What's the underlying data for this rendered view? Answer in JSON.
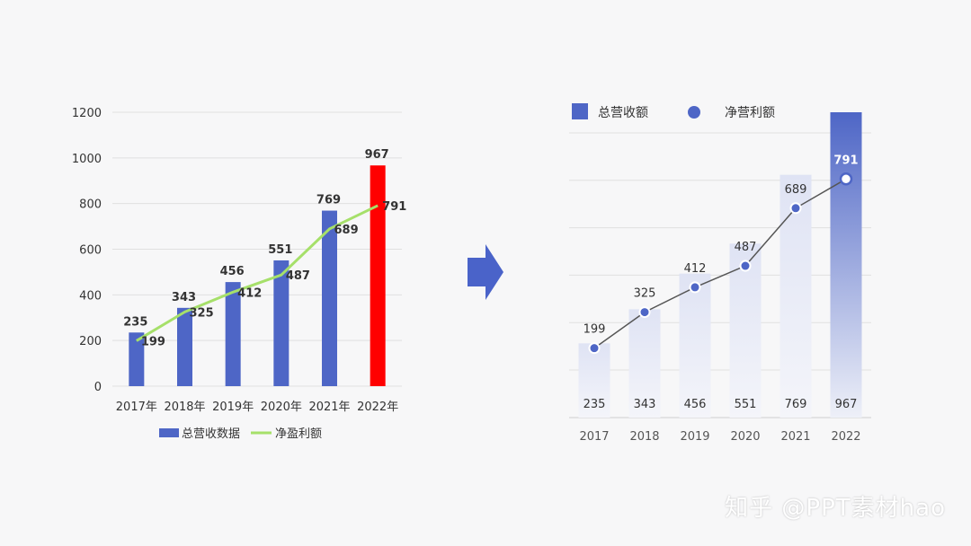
{
  "watermark": "知乎 @PPT素材hao",
  "colors": {
    "bar": "#4e66c6",
    "highlight": "#ff0000",
    "line_left": "#a6e06a",
    "line_right": "#555555",
    "axis_text": "#333333",
    "grid": "#e0e0e0",
    "arrow": "#4a63c9",
    "gradient_light": "#eceef7"
  },
  "chart_data": [
    {
      "type": "bar",
      "categories": [
        "2017年",
        "2018年",
        "2019年",
        "2020年",
        "2021年",
        "2022年"
      ],
      "series": [
        {
          "name": "总营收数据",
          "type": "bar",
          "values": [
            235,
            343,
            456,
            551,
            769,
            967
          ]
        },
        {
          "name": "净盈利额",
          "type": "line",
          "values": [
            199,
            325,
            412,
            487,
            689,
            791
          ]
        }
      ],
      "highlight_index": 5,
      "ylim": [
        0,
        1200
      ],
      "yticks": [
        "0",
        "200",
        "400",
        "600",
        "800",
        "1000",
        "1200"
      ],
      "grid": true,
      "legend": "bottom"
    },
    {
      "type": "bar",
      "categories": [
        "2017",
        "2018",
        "2019",
        "2020",
        "2021",
        "2022"
      ],
      "series": [
        {
          "name": "总营收额",
          "type": "bar",
          "values": [
            235,
            343,
            456,
            551,
            769,
            967
          ]
        },
        {
          "name": "净营利额",
          "type": "line",
          "values": [
            199,
            325,
            412,
            487,
            689,
            791
          ]
        }
      ],
      "highlight_index": 5,
      "ylim": [
        0,
        1000
      ],
      "grid": true,
      "legend": "top-left"
    }
  ]
}
